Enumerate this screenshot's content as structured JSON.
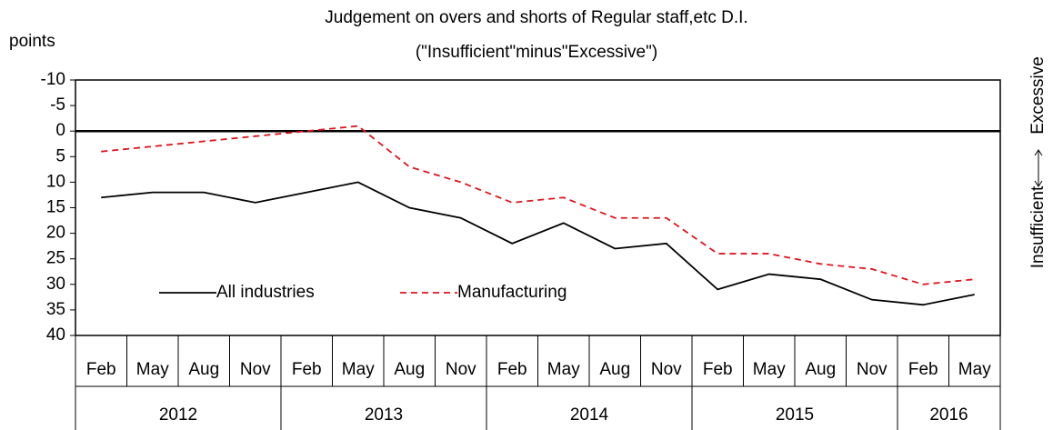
{
  "chart_data": {
    "type": "line",
    "title": "Judgement on overs and shorts of Regular staff,etc D.I.",
    "subtitle": "(\"Insufficient\"minus\"Excessive\")",
    "y_label": "points",
    "annotations": [
      "Insufficient",
      "Excessive"
    ],
    "categories": [
      "Feb",
      "May",
      "Aug",
      "Nov",
      "Feb",
      "May",
      "Aug",
      "Nov",
      "Feb",
      "May",
      "Aug",
      "Nov",
      "Feb",
      "May",
      "Aug",
      "Nov",
      "Feb",
      "May"
    ],
    "year_groups": [
      {
        "label": "2012",
        "count": 4
      },
      {
        "label": "2013",
        "count": 4
      },
      {
        "label": "2014",
        "count": 4
      },
      {
        "label": "2015",
        "count": 4
      },
      {
        "label": "2016",
        "count": 2
      }
    ],
    "series": [
      {
        "name": "All industries",
        "color": "#000000",
        "dash": false,
        "values": [
          13,
          12,
          12,
          14,
          12,
          10,
          15,
          17,
          22,
          18,
          23,
          22,
          31,
          28,
          29,
          33,
          34,
          32
        ]
      },
      {
        "name": "Manufacturing",
        "color": "#e0141e",
        "dash": true,
        "values": [
          4,
          3,
          2,
          1,
          0,
          -1,
          7,
          10,
          14,
          13,
          17,
          17,
          24,
          24,
          26,
          27,
          30,
          29
        ]
      }
    ],
    "ylim": [
      -10,
      40
    ],
    "y_inverted": true,
    "yticks": [
      -10,
      -5,
      0,
      5,
      10,
      15,
      20,
      25,
      30,
      35,
      40
    ],
    "grid": false,
    "legend": "lower left"
  }
}
